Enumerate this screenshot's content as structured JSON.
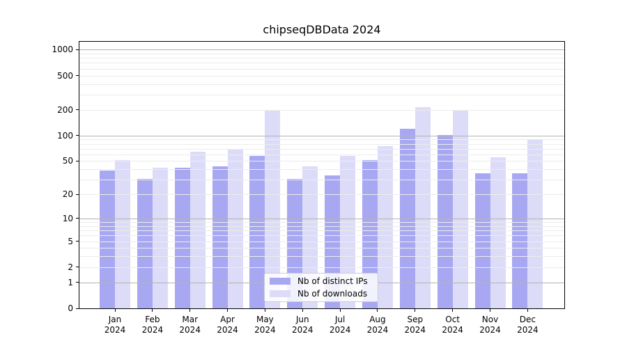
{
  "title": "chipseqDBData 2024",
  "chart_data": {
    "type": "bar",
    "title": "chipseqDBData 2024",
    "scale": "log1p",
    "categories": [
      "Jan",
      "Feb",
      "Mar",
      "Apr",
      "May",
      "Jun",
      "Jul",
      "Aug",
      "Sep",
      "Oct",
      "Nov",
      "Dec"
    ],
    "category_year": "2024",
    "series": [
      {
        "name": "Nb of distinct IPs",
        "color": "#a8a8f2",
        "values": [
          39,
          31,
          42,
          43,
          58,
          31,
          34,
          51,
          120,
          102,
          36,
          36
        ]
      },
      {
        "name": "Nb of downloads",
        "color": "#dcdcf9",
        "values": [
          51,
          42,
          65,
          70,
          200,
          43,
          58,
          75,
          215,
          194,
          55,
          89
        ]
      }
    ],
    "y_ticks": [
      0,
      1,
      2,
      5,
      10,
      20,
      50,
      100,
      200,
      500,
      1000
    ],
    "ylim": [
      0,
      1240
    ],
    "xlabel": "",
    "ylabel": "",
    "grid": true,
    "grid_major_color": "#b3b3b3",
    "grid_minor_color": "#ececec",
    "legend_position": "lower-center-inside"
  }
}
